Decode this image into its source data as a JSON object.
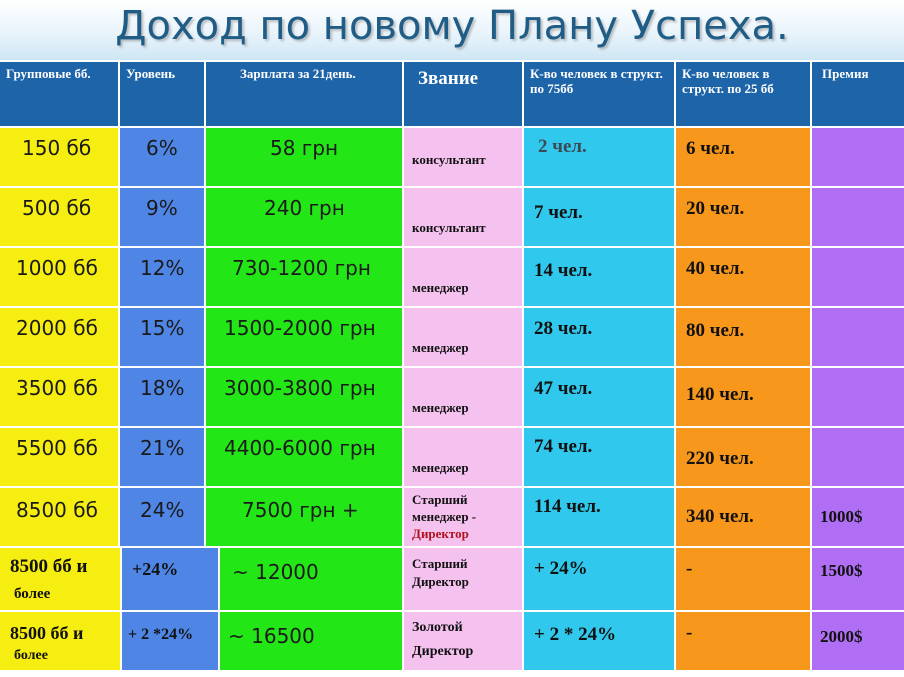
{
  "title": "Доход по новому Плану Успеха.",
  "colors": {
    "header": "#1e64a8",
    "yellow": "#f6ee10",
    "blue": "#4f86e6",
    "green": "#22e616",
    "pink": "#f5c2f0",
    "cyan": "#30c8ec",
    "orange": "#f7971c",
    "violet": "#b06ef4"
  },
  "headers": {
    "group_bb": "Групповые бб.",
    "level": "Уровень",
    "salary": "Зарплата за 21день.",
    "rank": "Звание",
    "count75": "К-во человек в структ. по 75бб",
    "count25": "К-во человек в структ. по 25 бб",
    "bonus": "Премия"
  },
  "rows": [
    {
      "bb": "150 бб",
      "level": "6%",
      "salary": "58 грн",
      "rank": "консультант",
      "c75": "2 чел.",
      "c25": "6 чел.",
      "bonus": ""
    },
    {
      "bb": "500 бб",
      "level": "9%",
      "salary": "240 грн",
      "rank": "консультант",
      "c75": "7 чел.",
      "c25": "20 чел.",
      "bonus": ""
    },
    {
      "bb": "1000 бб",
      "level": "12%",
      "salary": "730-1200 грн",
      "rank": "менеджер",
      "c75": "14 чел.",
      "c25": "40 чел.",
      "bonus": ""
    },
    {
      "bb": "2000 бб",
      "level": "15%",
      "salary": "1500-2000 грн",
      "rank": "менеджер",
      "c75": "28 чел.",
      "c25": "80 чел.",
      "bonus": ""
    },
    {
      "bb": "3500 бб",
      "level": "18%",
      "salary": "3000-3800 грн",
      "rank": "менеджер",
      "c75": "47 чел.",
      "c25": "140 чел.",
      "bonus": ""
    },
    {
      "bb": "5500 бб",
      "level": "21%",
      "salary": "4400-6000 грн",
      "rank": "менеджер",
      "c75": "74 чел.",
      "c25": "220 чел.",
      "bonus": ""
    },
    {
      "bb": "8500 бб",
      "level": "24%",
      "salary": "7500 грн +",
      "rank_line1": "Старший",
      "rank_line2": "менеджер -",
      "rank_line3": "Директор",
      "c75": "114 чел.",
      "c25": "340 чел.",
      "bonus": "1000$"
    }
  ],
  "extra_rows": [
    {
      "bb_line1": "8500 бб и",
      "bb_line2": "более",
      "level": "+24%",
      "salary": "~ 12000",
      "rank_line1": "Старший",
      "rank_line2": "Директор",
      "c75": "+ 24%",
      "c25": "-",
      "bonus": "1500$"
    },
    {
      "bb_line1": "8500 бб и",
      "bb_line2": "более",
      "level": "+ 2 *24%",
      "salary": "~ 16500",
      "rank_line1": "Золотой",
      "rank_line2": "Директор",
      "c75": "+ 2 * 24%",
      "c25": "-",
      "bonus": "2000$"
    }
  ]
}
